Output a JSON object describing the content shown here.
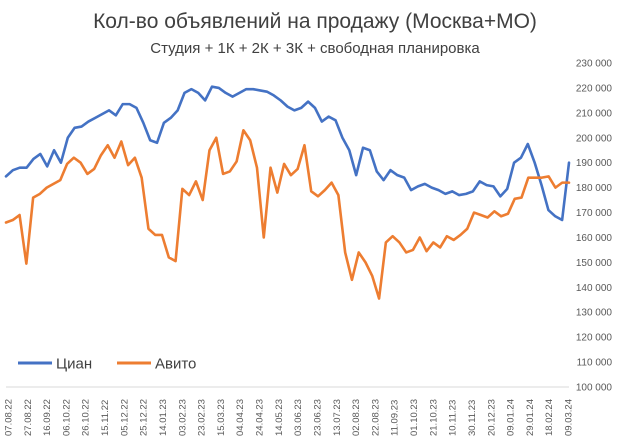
{
  "chart_data": {
    "type": "line",
    "title": "Кол-во объявлений на продажу (Москва+МО)",
    "subtitle": "Студия + 1К + 2К + 3К + свободная планировка",
    "xlabel": "",
    "ylabel": "",
    "ylim": [
      100000,
      230000
    ],
    "y_ticks": [
      100000,
      110000,
      120000,
      130000,
      140000,
      150000,
      160000,
      170000,
      180000,
      190000,
      200000,
      210000,
      220000,
      230000
    ],
    "y_tick_labels": [
      "100 000",
      "110 000",
      "120 000",
      "130 000",
      "140 000",
      "150 000",
      "160 000",
      "170 000",
      "180 000",
      "190 000",
      "200 000",
      "210 000",
      "220 000",
      "230 000"
    ],
    "x_tick_labels": [
      "07.08.22",
      "27.08.22",
      "16.09.22",
      "06.10.22",
      "26.10.22",
      "15.11.22",
      "05.12.22",
      "25.12.22",
      "14.01.23",
      "03.02.23",
      "23.02.23",
      "15.03.23",
      "04.04.23",
      "24.04.23",
      "14.05.23",
      "03.06.23",
      "23.06.23",
      "13.07.23",
      "02.08.23",
      "22.08.23",
      "11.09.23",
      "01.10.23",
      "21.10.23",
      "10.11.23",
      "30.11.23",
      "20.12.23",
      "09.01.24",
      "29.01.24",
      "18.02.24",
      "09.03.24"
    ],
    "grid": false,
    "legend_position": "bottom-left",
    "series": [
      {
        "name": "Циан",
        "color": "#4472c4",
        "values": [
          184500,
          187000,
          188000,
          188000,
          191500,
          193500,
          188500,
          195000,
          190000,
          200000,
          204000,
          204500,
          206500,
          208000,
          209500,
          211000,
          209000,
          213500,
          213500,
          212000,
          206000,
          199000,
          198000,
          206000,
          208000,
          211000,
          218000,
          219500,
          218000,
          215000,
          220500,
          220000,
          218000,
          216500,
          218000,
          219500,
          219500,
          219000,
          218500,
          217000,
          215000,
          212500,
          211000,
          212000,
          214500,
          212000,
          206500,
          208500,
          207000,
          200000,
          195000,
          185000,
          196000,
          195000,
          186500,
          183000,
          187000,
          185000,
          184000,
          179000,
          180500,
          181500,
          180000,
          179000,
          177500,
          178500,
          177000,
          177500,
          178500,
          182500,
          181000,
          180500,
          176500,
          179500,
          190000,
          192000,
          197500,
          190000,
          181000,
          171000,
          168500,
          167000,
          190000
        ]
      },
      {
        "name": "Авито",
        "color": "#ed7d31",
        "values": [
          166000,
          167000,
          169000,
          149500,
          176000,
          177500,
          180000,
          181500,
          183000,
          189500,
          192000,
          190000,
          185500,
          187500,
          193000,
          197000,
          192000,
          198500,
          189000,
          192000,
          184000,
          163500,
          161000,
          161000,
          152000,
          150500,
          179500,
          177000,
          182500,
          175000,
          195000,
          200000,
          185500,
          186500,
          190500,
          203000,
          199000,
          188000,
          160000,
          188000,
          178000,
          189500,
          185000,
          187500,
          197000,
          178500,
          176500,
          179000,
          182000,
          177000,
          154000,
          143000,
          154000,
          150000,
          144500,
          135500,
          158000,
          160500,
          158000,
          154000,
          155000,
          160000,
          154500,
          158000,
          156000,
          160500,
          159000,
          161000,
          163500,
          170000,
          169000,
          168000,
          170500,
          168500,
          169500,
          175500,
          176000,
          184000,
          184000,
          184000,
          184500,
          180000,
          182000,
          182000
        ]
      }
    ]
  }
}
